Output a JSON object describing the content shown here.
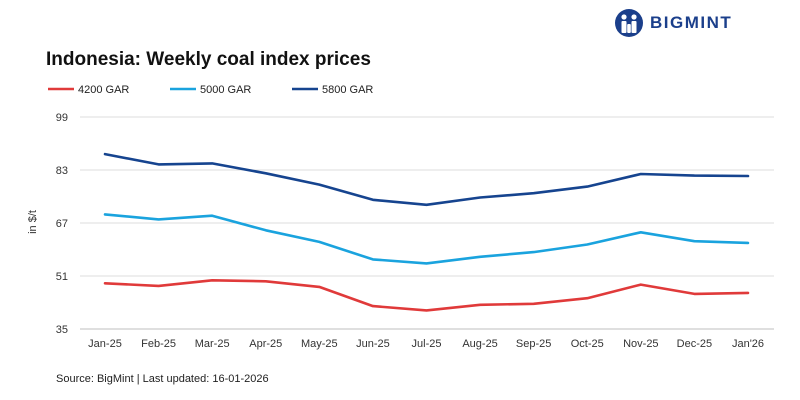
{
  "brand": {
    "name": "BIGMINT",
    "color": "#1b3f8b"
  },
  "footer": {
    "source": "Source: BigMint | Last updated: 16-01-2026"
  },
  "chart_data": {
    "type": "line",
    "title": "Indonesia: Weekly coal index prices",
    "xlabel": "",
    "ylabel": "in $/t",
    "ylim": [
      35,
      99
    ],
    "yticks": [
      35,
      51,
      67,
      83,
      99
    ],
    "grid": true,
    "legend": "top-left",
    "categories": [
      "Jan-25",
      "Feb-25",
      "Mar-25",
      "Apr-25",
      "May-25",
      "Jun-25",
      "Jul-25",
      "Aug-25",
      "Sep-25",
      "Oct-25",
      "Nov-25",
      "Dec-25",
      "Jan'26"
    ],
    "series": [
      {
        "name": "4200 GAR",
        "color": "#e03a3a",
        "values": [
          48.8,
          48.0,
          49.7,
          49.4,
          47.7,
          41.9,
          40.6,
          42.3,
          42.6,
          44.3,
          48.4,
          45.6,
          45.9
        ]
      },
      {
        "name": "5000 GAR",
        "color": "#1aa3de",
        "values": [
          69.6,
          68.1,
          69.2,
          64.8,
          61.3,
          56.0,
          54.8,
          56.8,
          58.2,
          60.5,
          64.2,
          61.5,
          61.0
        ]
      },
      {
        "name": "5800 GAR",
        "color": "#16448f",
        "values": [
          87.8,
          84.7,
          85.0,
          82.0,
          78.6,
          74.0,
          72.5,
          74.7,
          76.0,
          78.0,
          81.8,
          81.3,
          81.2
        ]
      }
    ]
  }
}
